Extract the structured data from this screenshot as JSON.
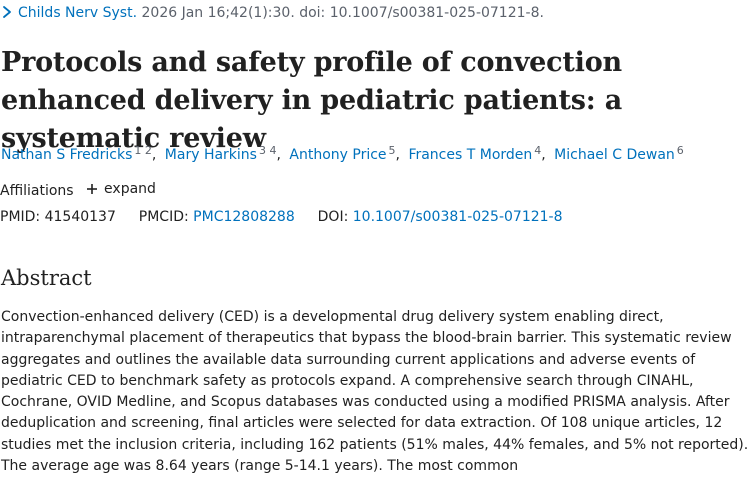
{
  "citation": {
    "journal": "Childs Nerv Syst.",
    "details": "2026 Jan 16;42(1):30. doi: 10.1007/s00381-025-07121-8."
  },
  "article": {
    "title": "Protocols and safety profile of convection enhanced delivery in pediatric patients: a systematic review"
  },
  "authors": [
    {
      "name": "Nathan S Fredricks",
      "affiliations": "1 2"
    },
    {
      "name": "Mary Harkins",
      "affiliations": "3 4"
    },
    {
      "name": "Anthony Price",
      "affiliations": "5"
    },
    {
      "name": "Frances T Morden",
      "affiliations": "4"
    },
    {
      "name": "Michael C Dewan",
      "affiliations": "6"
    }
  ],
  "affiliations": {
    "label": "Affiliations",
    "expand_label": "expand"
  },
  "identifiers": {
    "pmid_label": "PMID:",
    "pmid": "41540137",
    "pmcid_label": "PMCID:",
    "pmcid": "PMC12808288",
    "doi_label": "DOI:",
    "doi": "10.1007/s00381-025-07121-8"
  },
  "abstract": {
    "heading": "Abstract",
    "text": "Convection-enhanced delivery (CED) is a developmental drug delivery system enabling direct, intraparenchymal placement of therapeutics that bypass the blood-brain barrier. This systematic review aggregates and outlines the available data surrounding current applications and adverse events of pediatric CED to benchmark safety as protocols expand. A comprehensive search through CINAHL, Cochrane, OVID Medline, and Scopus databases was conducted using a modified PRISMA analysis. After deduplication and screening, final articles were selected for data extraction. Of 108 unique articles, 12 studies met the inclusion criteria, including 162 patients (51% males, 44% females, and 5% not reported). The average age was 8.64 years (range 5-14.1 years). The most common"
  },
  "colors": {
    "link": "#0071bc",
    "text": "#212121",
    "muted": "#5b616b"
  }
}
